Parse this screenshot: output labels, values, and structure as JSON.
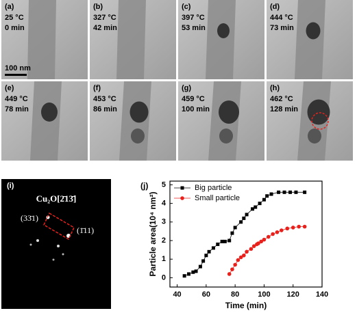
{
  "panels": [
    {
      "label": "(a)",
      "temperature": "25 °C",
      "time": "0 min",
      "scale_bar": "100 nm"
    },
    {
      "label": "(b)",
      "temperature": "327 °C",
      "time": "42 min"
    },
    {
      "label": "(c)",
      "temperature": "397 °C",
      "time": "53 min"
    },
    {
      "label": "(d)",
      "temperature": "444 °C",
      "time": "73 min"
    },
    {
      "label": "(e)",
      "temperature": "449 °C",
      "time": "78 min"
    },
    {
      "label": "(f)",
      "temperature": "453 °C",
      "time": "86 min"
    },
    {
      "label": "(g)",
      "temperature": "459 °C",
      "time": "100 min"
    },
    {
      "label": "(h)",
      "temperature": "462 °C",
      "time": "128 min"
    }
  ],
  "diffraction": {
    "label": "(i)",
    "formula": "Cu₂O[2̄13̄]",
    "spot_1": "(33̄1)",
    "spot_2": "(1̄11)"
  },
  "chart_data": {
    "type": "line",
    "label": "(j)",
    "x_label": "Time (min)",
    "y_label": "Particle area(10⁴ nm²)",
    "xlim": [
      35,
      140
    ],
    "ylim": [
      -0.5,
      5.2
    ],
    "xticks": [
      40,
      60,
      80,
      100,
      120,
      140
    ],
    "yticks": [
      0,
      1,
      2,
      3,
      4,
      5
    ],
    "legend": "upper left",
    "series": [
      {
        "name": "Big particle",
        "color": "#000000",
        "marker": "square",
        "x": [
          45,
          48,
          51,
          53,
          56,
          58,
          60,
          62,
          65,
          68,
          71,
          73,
          76,
          78,
          80,
          84,
          86,
          88,
          92,
          94,
          97,
          100,
          102,
          105,
          110,
          114,
          118,
          122,
          128
        ],
        "values": [
          0.1,
          0.2,
          0.3,
          0.35,
          0.6,
          0.9,
          1.2,
          1.4,
          1.6,
          1.8,
          1.95,
          1.95,
          2.0,
          2.4,
          2.7,
          3.0,
          3.2,
          3.4,
          3.7,
          3.8,
          4.0,
          4.2,
          4.4,
          4.5,
          4.6,
          4.6,
          4.6,
          4.6,
          4.6
        ]
      },
      {
        "name": "Small particle",
        "color": "#e8211c",
        "marker": "circle",
        "x": [
          76,
          78,
          80,
          82,
          84,
          86,
          88,
          91,
          93,
          95,
          96,
          98,
          100,
          103,
          106,
          109,
          112,
          116,
          120,
          124,
          128
        ],
        "values": [
          0.2,
          0.45,
          0.7,
          0.95,
          1.1,
          1.2,
          1.4,
          1.55,
          1.7,
          1.8,
          1.85,
          1.95,
          2.05,
          2.2,
          2.35,
          2.45,
          2.55,
          2.65,
          2.7,
          2.75,
          2.75
        ]
      }
    ]
  }
}
